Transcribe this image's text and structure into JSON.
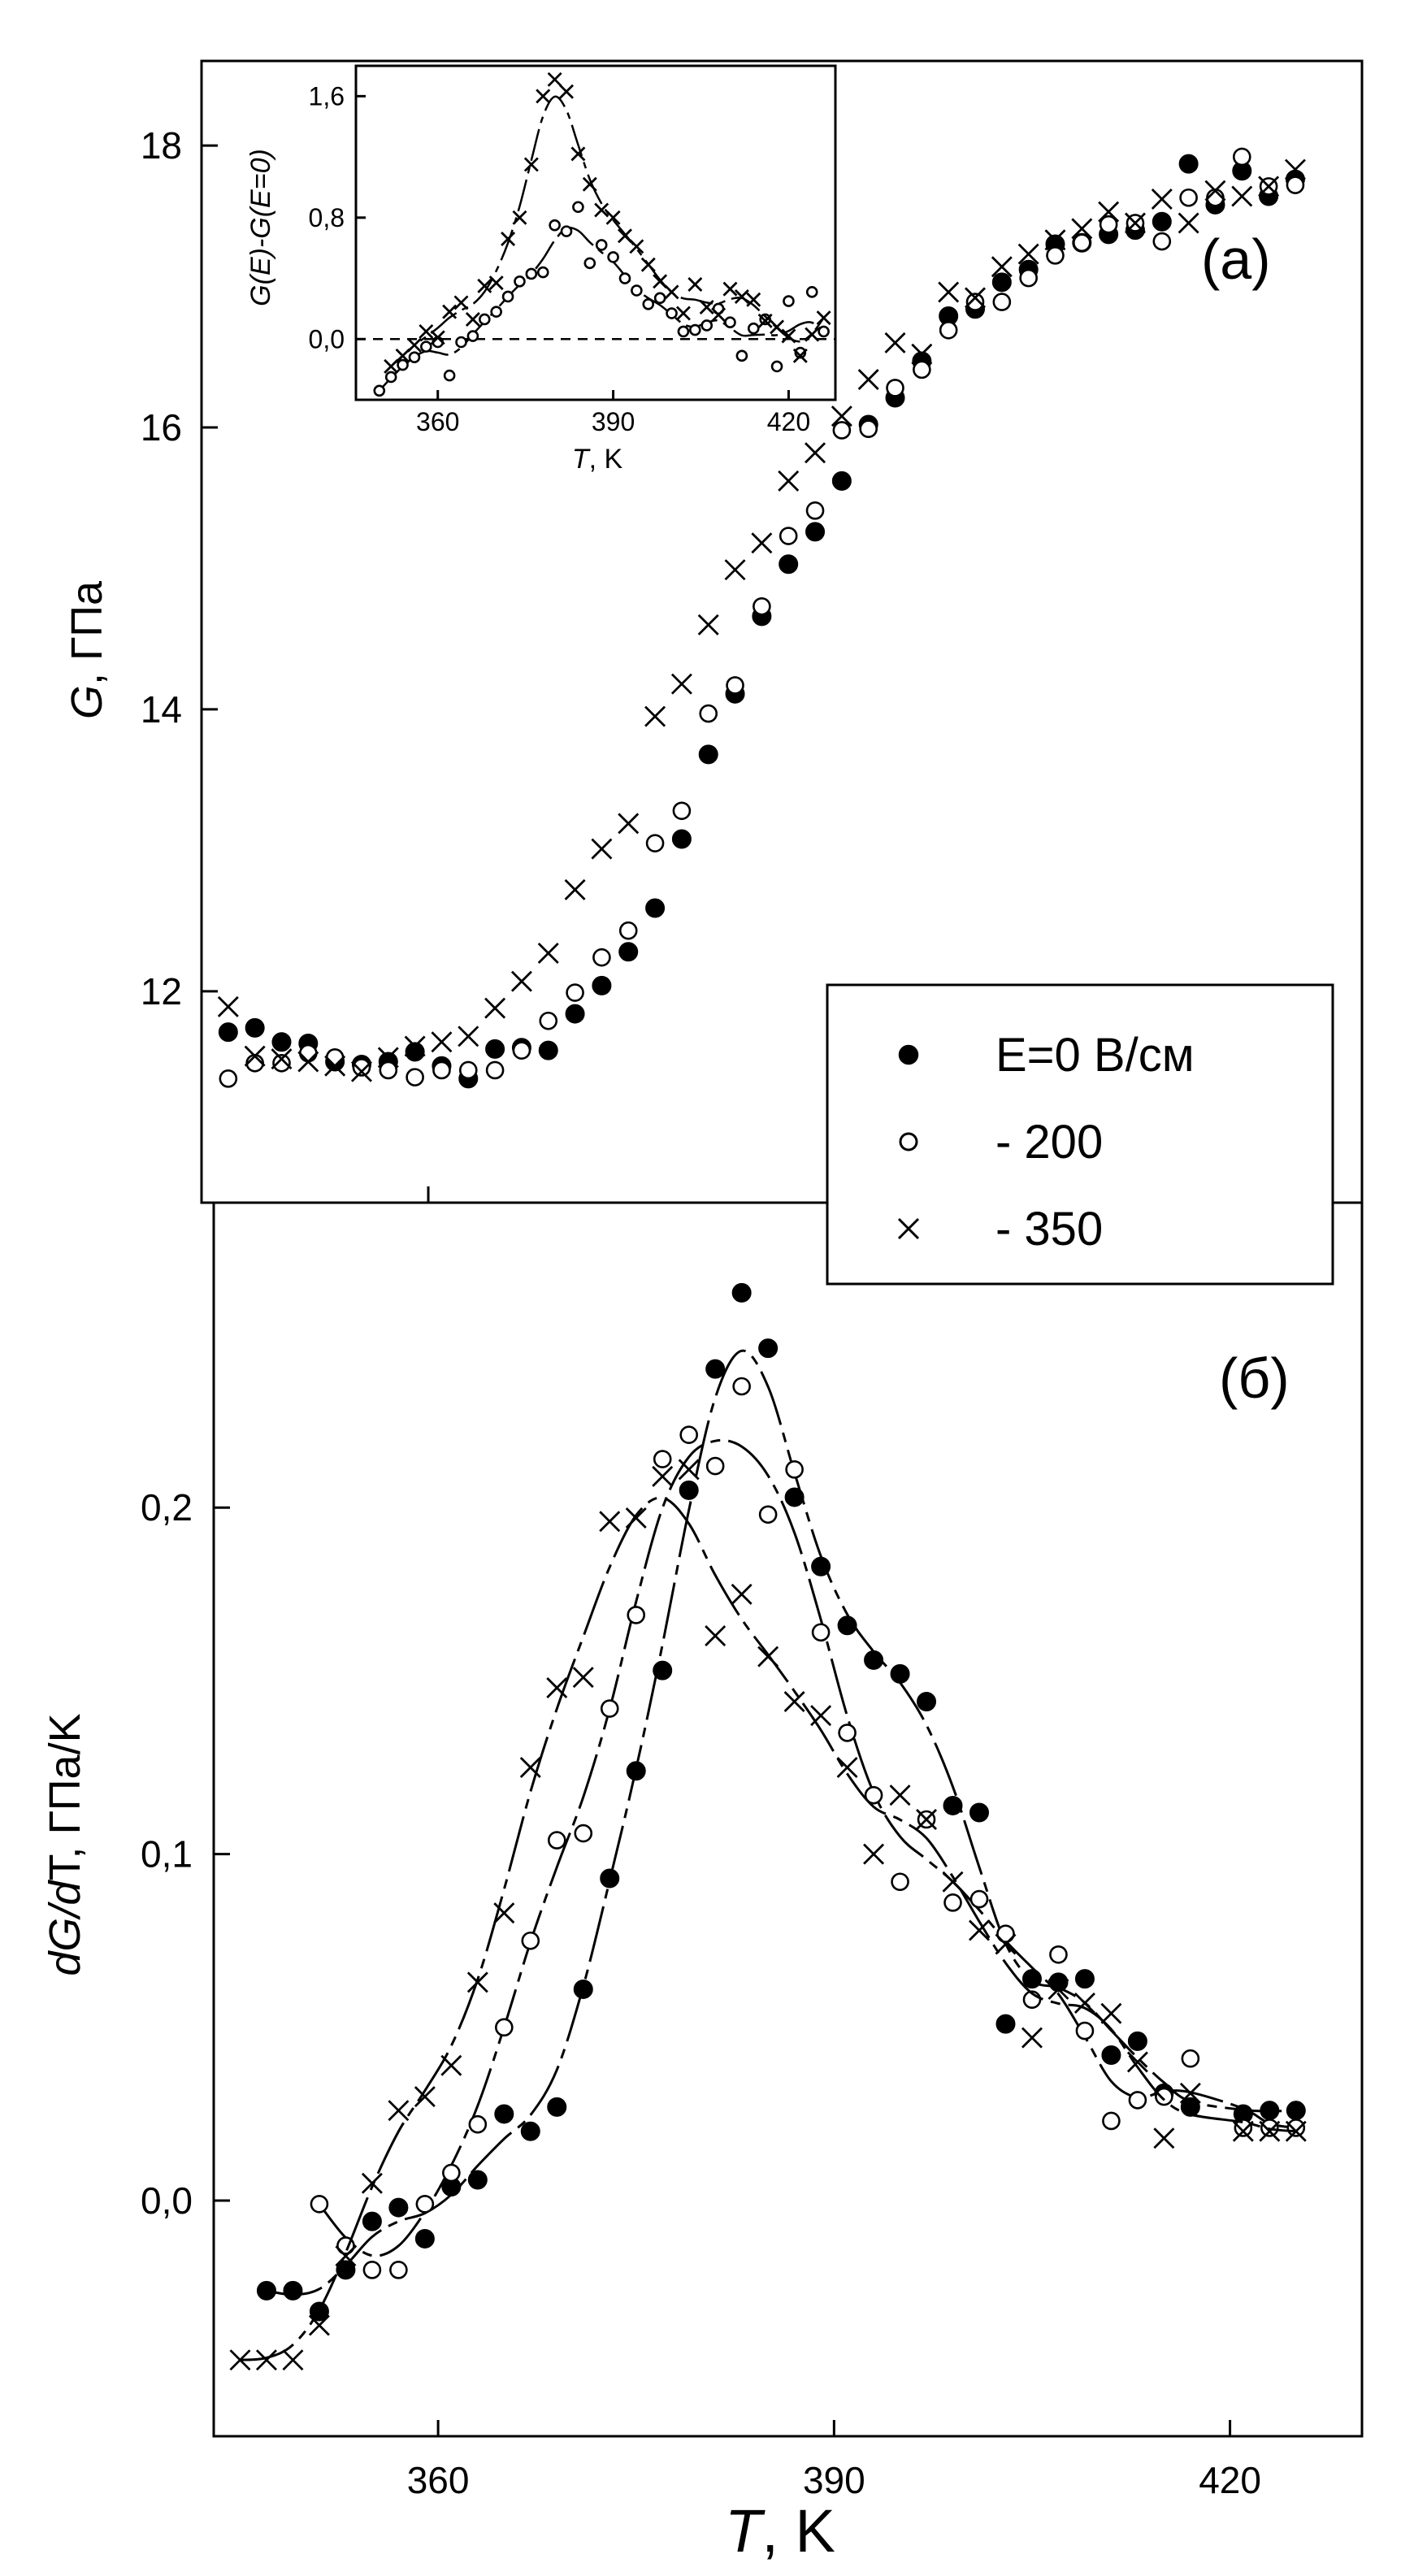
{
  "chart_data": [
    {
      "type": "scatter",
      "panel_label": "(a)",
      "ylabel_italic": "G",
      "ylabel_rest": ", ГПа",
      "xlim": [
        343,
        430
      ],
      "ylim": [
        10.5,
        18.6
      ],
      "yticks": [
        "12",
        "14",
        "16",
        "18"
      ],
      "ytick_values": [
        12,
        14,
        16,
        18
      ],
      "xtick_values": [
        360,
        390,
        420
      ],
      "legend_position": "bottom-right",
      "series": [
        {
          "name": "E=0 В/см",
          "marker": "filled-circle",
          "x": [
            345,
            347,
            349,
            351,
            353,
            355,
            357,
            359,
            361,
            363,
            365,
            367,
            369,
            371,
            373,
            375,
            377,
            379,
            381,
            383,
            385,
            387,
            389,
            391,
            393,
            395,
            397,
            399,
            401,
            403,
            405,
            407,
            409,
            411,
            413,
            415,
            417,
            419,
            421,
            423,
            425
          ],
          "y": [
            11.71,
            11.74,
            11.64,
            11.63,
            11.5,
            11.48,
            11.5,
            11.57,
            11.47,
            11.38,
            11.59,
            11.6,
            11.58,
            11.84,
            12.04,
            12.28,
            12.59,
            13.08,
            13.68,
            14.11,
            14.66,
            15.03,
            15.26,
            15.62,
            16.02,
            16.21,
            16.47,
            16.79,
            16.84,
            17.03,
            17.12,
            17.3,
            17.31,
            17.37,
            17.4,
            17.46,
            17.87,
            17.58,
            17.82,
            17.64,
            17.76
          ]
        },
        {
          "name": "- 200",
          "marker": "open-circle",
          "x": [
            345,
            347,
            349,
            351,
            353,
            355,
            357,
            359,
            361,
            363,
            365,
            367,
            369,
            371,
            373,
            375,
            377,
            379,
            381,
            383,
            385,
            387,
            389,
            391,
            393,
            395,
            397,
            399,
            401,
            403,
            405,
            407,
            409,
            411,
            413,
            415,
            417,
            419,
            421,
            423,
            425
          ],
          "y": [
            11.38,
            11.49,
            11.49,
            11.56,
            11.53,
            11.46,
            11.44,
            11.39,
            11.44,
            11.44,
            11.44,
            11.58,
            11.79,
            11.99,
            12.24,
            12.43,
            13.05,
            13.28,
            13.97,
            14.17,
            14.73,
            15.23,
            15.41,
            15.98,
            15.99,
            16.28,
            16.41,
            16.69,
            16.89,
            16.89,
            17.06,
            17.22,
            17.31,
            17.44,
            17.45,
            17.32,
            17.63,
            17.63,
            17.92,
            17.71,
            17.72
          ]
        },
        {
          "name": "- 350",
          "marker": "cross",
          "x": [
            345,
            347,
            349,
            351,
            353,
            355,
            357,
            359,
            361,
            363,
            365,
            367,
            369,
            371,
            373,
            375,
            377,
            379,
            381,
            383,
            385,
            387,
            389,
            391,
            393,
            395,
            397,
            399,
            401,
            403,
            405,
            407,
            409,
            411,
            413,
            415,
            417,
            419,
            421,
            423,
            425
          ],
          "y": [
            11.89,
            11.54,
            11.52,
            11.5,
            11.47,
            11.43,
            11.53,
            11.61,
            11.64,
            11.68,
            11.88,
            12.07,
            12.27,
            12.72,
            13.01,
            13.19,
            13.95,
            14.18,
            14.6,
            14.99,
            15.18,
            15.62,
            15.82,
            16.08,
            16.34,
            16.6,
            16.52,
            16.96,
            16.92,
            17.14,
            17.23,
            17.33,
            17.41,
            17.53,
            17.45,
            17.62,
            17.45,
            17.68,
            17.64,
            17.71,
            17.83
          ]
        }
      ]
    },
    {
      "type": "scatter",
      "inset": true,
      "xlabel_italic": "T",
      "xlabel_rest": ", K",
      "ylabel": "G(E)-G(E=0)",
      "xlim": [
        346,
        428
      ],
      "ylim": [
        -0.4,
        1.8
      ],
      "xticks": [
        "360",
        "390",
        "420"
      ],
      "xtick_values": [
        360,
        390,
        420
      ],
      "yticks": [
        "0,0",
        "0,8",
        "1,6"
      ],
      "ytick_values": [
        0,
        0.8,
        1.6
      ],
      "zero_line": true,
      "series": [
        {
          "name": "- 200",
          "marker": "open-circle",
          "x": [
            350,
            352,
            354,
            356,
            358,
            360,
            362,
            364,
            366,
            368,
            370,
            372,
            374,
            376,
            378,
            380,
            382,
            384,
            386,
            388,
            390,
            392,
            394,
            396,
            398,
            400,
            402,
            404,
            406,
            408,
            410,
            412,
            414,
            416,
            418,
            420,
            422,
            424,
            426
          ],
          "y": [
            -0.34,
            -0.25,
            -0.17,
            -0.12,
            -0.05,
            -0.02,
            -0.24,
            -0.02,
            0.02,
            0.13,
            0.18,
            0.28,
            0.38,
            0.43,
            0.44,
            0.75,
            0.71,
            0.87,
            0.5,
            0.62,
            0.54,
            0.4,
            0.32,
            0.23,
            0.27,
            0.17,
            0.05,
            0.06,
            0.09,
            0.2,
            0.11,
            -0.11,
            0.07,
            0.13,
            -0.18,
            0.25,
            -0.09,
            0.31,
            0.05
          ]
        },
        {
          "name": "- 350",
          "marker": "cross",
          "x": [
            352,
            354,
            356,
            358,
            360,
            362,
            364,
            366,
            368,
            370,
            372,
            374,
            376,
            378,
            380,
            382,
            384,
            386,
            388,
            390,
            392,
            394,
            396,
            398,
            400,
            402,
            404,
            406,
            408,
            410,
            412,
            414,
            416,
            418,
            420,
            422,
            424,
            426
          ],
          "y": [
            -0.18,
            -0.11,
            -0.04,
            0.05,
            0.01,
            0.18,
            0.24,
            0.13,
            0.35,
            0.37,
            0.66,
            0.8,
            1.15,
            1.6,
            1.71,
            1.63,
            1.22,
            1.02,
            0.85,
            0.8,
            0.68,
            0.61,
            0.49,
            0.38,
            0.31,
            0.17,
            0.36,
            0.21,
            0.16,
            0.33,
            0.28,
            0.26,
            0.12,
            0.08,
            0.02,
            -0.11,
            0.03,
            0.14
          ]
        }
      ]
    },
    {
      "type": "scatter",
      "panel_label": "(б)",
      "xlabel_italic": "T",
      "xlabel_rest": ", K",
      "ylabel_a": "dG/",
      "ylabel_b": "d",
      "ylabel_c": "T, ГПа/K",
      "xlim": [
        343,
        430
      ],
      "ylim": [
        -0.068,
        0.288
      ],
      "xticks": [
        "360",
        "390",
        "420"
      ],
      "xtick_values": [
        360,
        390,
        420
      ],
      "yticks": [
        "0,0",
        "0,1",
        "0,2"
      ],
      "ytick_values": [
        0,
        0.1,
        0.2
      ],
      "series": [
        {
          "name": "E=0 В/см",
          "marker": "filled-circle",
          "x": [
            347,
            349,
            351,
            353,
            355,
            357,
            359,
            361,
            363,
            365,
            367,
            369,
            371,
            373,
            375,
            377,
            379,
            381,
            383,
            385,
            387,
            389,
            391,
            393,
            395,
            397,
            399,
            401,
            403,
            405,
            407,
            409,
            411,
            413,
            415,
            417,
            421,
            423,
            425
          ],
          "y": [
            -0.026,
            -0.026,
            -0.032,
            -0.02,
            -0.006,
            -0.002,
            -0.011,
            0.004,
            0.006,
            0.025,
            0.02,
            0.027,
            0.061,
            0.093,
            0.124,
            0.153,
            0.205,
            0.24,
            0.262,
            0.246,
            0.203,
            0.183,
            0.166,
            0.156,
            0.152,
            0.144,
            0.114,
            0.112,
            0.051,
            0.064,
            0.063,
            0.064,
            0.042,
            0.046,
            0.031,
            0.027,
            0.025,
            0.026,
            0.026
          ]
        },
        {
          "name": "- 200",
          "marker": "open-circle",
          "x": [
            351,
            353,
            355,
            357,
            359,
            361,
            363,
            365,
            367,
            369,
            371,
            373,
            375,
            377,
            379,
            381,
            383,
            385,
            387,
            389,
            391,
            393,
            395,
            397,
            399,
            401,
            403,
            405,
            407,
            409,
            411,
            413,
            415,
            417,
            421,
            423,
            425
          ],
          "y": [
            -0.001,
            -0.013,
            -0.02,
            -0.02,
            -0.001,
            0.008,
            0.022,
            0.05,
            0.075,
            0.104,
            0.106,
            0.142,
            0.169,
            0.214,
            0.221,
            0.212,
            0.235,
            0.198,
            0.211,
            0.164,
            0.135,
            0.117,
            0.092,
            0.11,
            0.086,
            0.087,
            0.077,
            0.058,
            0.071,
            0.049,
            0.023,
            0.029,
            0.03,
            0.041,
            0.021,
            0.021,
            0.021
          ]
        },
        {
          "name": "- 350",
          "marker": "cross",
          "x": [
            345,
            347,
            349,
            351,
            353,
            355,
            357,
            359,
            361,
            363,
            365,
            367,
            369,
            371,
            373,
            375,
            377,
            379,
            381,
            383,
            385,
            387,
            389,
            391,
            393,
            395,
            397,
            399,
            401,
            403,
            405,
            407,
            409,
            411,
            413,
            415,
            417,
            421,
            423,
            425
          ],
          "y": [
            -0.046,
            -0.046,
            -0.046,
            -0.036,
            -0.016,
            0.005,
            0.026,
            0.03,
            0.039,
            0.063,
            0.083,
            0.125,
            0.148,
            0.151,
            0.196,
            0.197,
            0.209,
            0.211,
            0.163,
            0.175,
            0.157,
            0.144,
            0.14,
            0.125,
            0.1,
            0.117,
            0.11,
            0.092,
            0.078,
            0.074,
            0.047,
            0.061,
            0.057,
            0.054,
            0.04,
            0.018,
            0.031,
            0.02,
            0.02,
            0.02
          ]
        }
      ]
    }
  ]
}
